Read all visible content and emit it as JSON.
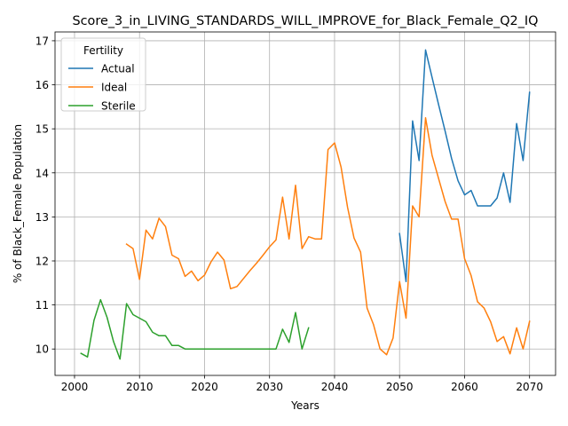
{
  "chart_data": {
    "type": "line",
    "title": "Score_3_in_LIVING_STANDARDS_WILL_IMPROVE_for_Black_Female_Q2_IQ",
    "xlabel": "Years",
    "ylabel": "% of Black_Female Population",
    "xlim": [
      1997,
      2074
    ],
    "ylim": [
      9.4,
      17.2
    ],
    "xticks": [
      2000,
      2010,
      2020,
      2030,
      2040,
      2050,
      2060,
      2070
    ],
    "yticks": [
      10,
      11,
      12,
      13,
      14,
      15,
      16,
      17
    ],
    "grid": true,
    "legend": {
      "title": "Fertility",
      "placement": "top-left"
    },
    "series": [
      {
        "name": "Actual",
        "color": "#1f77b4",
        "x": [
          2050,
          2051,
          2052,
          2053,
          2054,
          2055,
          2056,
          2057,
          2058,
          2059,
          2060,
          2061,
          2062,
          2063,
          2064,
          2065,
          2066,
          2067,
          2068,
          2069,
          2070
        ],
        "y": [
          12.62,
          11.53,
          15.18,
          14.28,
          16.79,
          16.17,
          15.55,
          14.95,
          14.33,
          13.82,
          13.5,
          13.6,
          13.25,
          13.25,
          13.25,
          13.43,
          14.0,
          13.33,
          15.12,
          14.28,
          15.83
        ]
      },
      {
        "name": "Ideal",
        "color": "#ff7f0e",
        "x": [
          2008,
          2009,
          2010,
          2011,
          2012,
          2013,
          2014,
          2015,
          2016,
          2017,
          2018,
          2019,
          2020,
          2021,
          2022,
          2023,
          2024,
          2025,
          2026,
          2027,
          2028,
          2029,
          2030,
          2031,
          2032,
          2033,
          2034,
          2035,
          2036,
          2037,
          2038,
          2039,
          2040,
          2041,
          2042,
          2043,
          2044,
          2045,
          2046,
          2047,
          2048,
          2049,
          2050,
          2051,
          2052,
          2053,
          2054,
          2055,
          2056,
          2057,
          2058,
          2059,
          2060,
          2061,
          2062,
          2063,
          2064,
          2065,
          2066,
          2067,
          2068,
          2069,
          2070
        ],
        "y": [
          12.38,
          12.28,
          11.58,
          12.7,
          12.5,
          12.97,
          12.78,
          12.13,
          12.05,
          11.65,
          11.77,
          11.55,
          11.68,
          11.98,
          12.2,
          12.02,
          11.37,
          11.42,
          11.6,
          11.78,
          11.95,
          12.13,
          12.32,
          12.48,
          13.45,
          12.5,
          13.72,
          12.28,
          12.55,
          12.5,
          12.5,
          14.53,
          14.68,
          14.13,
          13.22,
          12.52,
          12.2,
          10.93,
          10.55,
          10.0,
          9.87,
          10.25,
          11.53,
          10.7,
          13.25,
          13.0,
          15.25,
          14.4,
          13.87,
          13.35,
          12.95,
          12.95,
          12.05,
          11.67,
          11.07,
          10.93,
          10.62,
          10.17,
          10.28,
          9.89,
          10.48,
          10.0,
          10.63
        ]
      },
      {
        "name": "Sterile",
        "color": "#2ca02c",
        "x": [
          2001,
          2002,
          2003,
          2004,
          2005,
          2006,
          2007,
          2008,
          2009,
          2010,
          2011,
          2012,
          2013,
          2014,
          2015,
          2016,
          2017,
          2018,
          2019,
          2020,
          2021,
          2022,
          2023,
          2024,
          2025,
          2026,
          2027,
          2028,
          2029,
          2030,
          2031,
          2032,
          2033,
          2034,
          2035,
          2036
        ],
        "y": [
          9.9,
          9.82,
          10.65,
          11.12,
          10.72,
          10.17,
          9.77,
          11.03,
          10.78,
          10.7,
          10.62,
          10.38,
          10.3,
          10.3,
          10.08,
          10.08,
          10.0,
          10.0,
          10.0,
          10.0,
          10.0,
          10.0,
          10.0,
          10.0,
          10.0,
          10.0,
          10.0,
          10.0,
          10.0,
          10.0,
          10.0,
          10.45,
          10.15,
          10.83,
          10.0,
          10.48
        ]
      }
    ]
  }
}
